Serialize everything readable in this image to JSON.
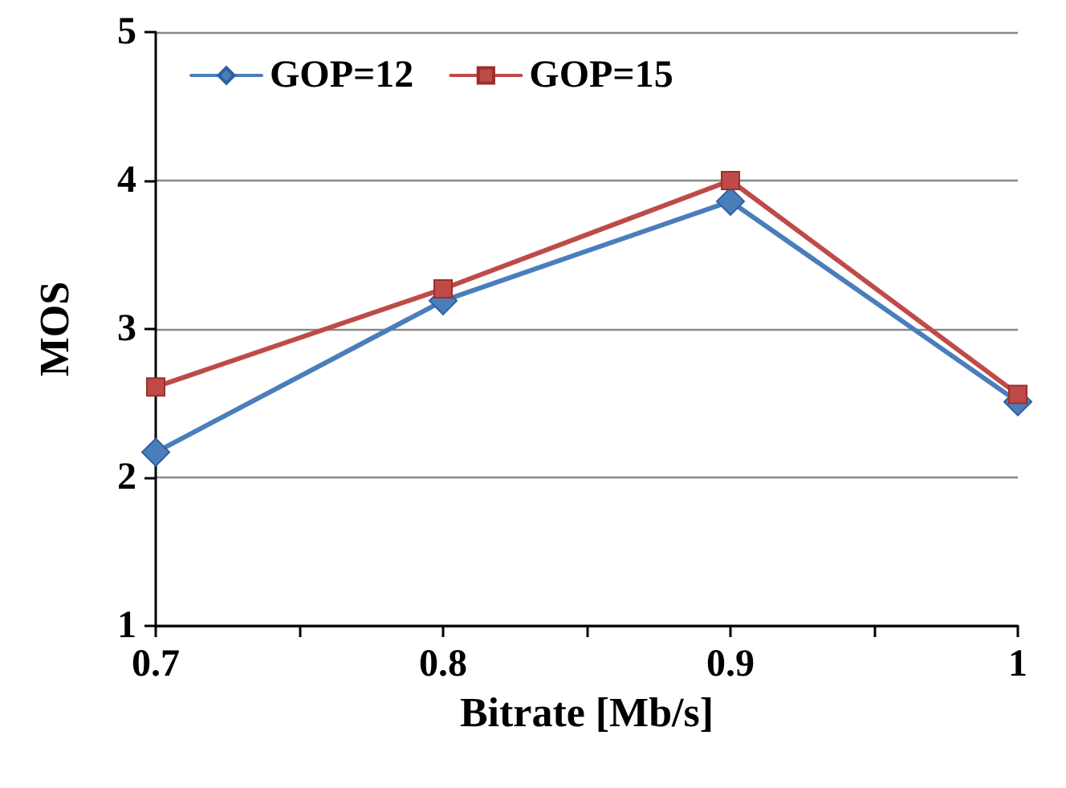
{
  "chart_data": {
    "type": "line",
    "xlabel": "Bitrate [Mb/s]",
    "ylabel": "MOS",
    "x": [
      0.7,
      0.8,
      0.9,
      1
    ],
    "xlim": [
      0.7,
      1
    ],
    "xticks": [
      0.7,
      {
        "value": 0.75,
        "label": null
      },
      0.8,
      {
        "value": 0.85,
        "label": null
      },
      0.9,
      {
        "value": 0.95,
        "label": null
      },
      1
    ],
    "ylim": [
      1,
      5
    ],
    "yticks": [
      1,
      2,
      3,
      4,
      5
    ],
    "grid": "y",
    "legend": "top left",
    "series": [
      {
        "name": "GOP=12",
        "color": "#4a7ebb",
        "marker": "diamond",
        "values": [
          2.17,
          3.19,
          3.86,
          2.51
        ]
      },
      {
        "name": "GOP=15",
        "color": "#be4b48",
        "marker": "square",
        "values": [
          2.61,
          3.27,
          4.0,
          2.56
        ]
      }
    ]
  }
}
